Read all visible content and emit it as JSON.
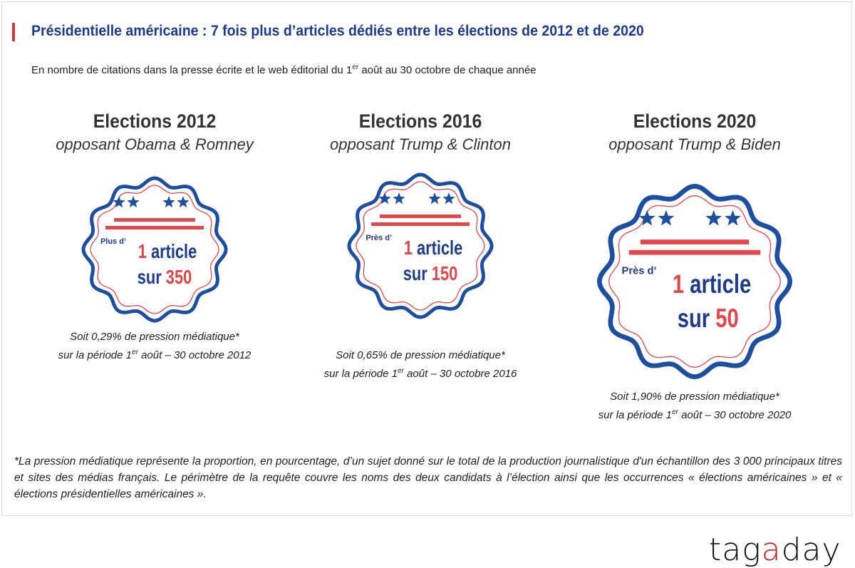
{
  "title": "Présidentielle américaine : 7 fois plus d’articles dédiés entre les élections de 2012 et de 2020",
  "subtitle_pre": "En nombre de citations dans la presse écrite et le web éditorial du 1",
  "subtitle_sup": "er",
  "subtitle_post": " août au 30 octobre de chaque année",
  "colors": {
    "blue": "#1d4ea0",
    "red": "#e2474b",
    "navy": "#1d3b8c"
  },
  "elections": [
    {
      "heading": "Elections 2012",
      "opponents": "opposant Obama & Romney",
      "prefix": "Plus d’",
      "one": "1",
      "article": "article",
      "sur": "sur",
      "number": "350",
      "stat1": "Soit 0,29% de pression médiatique*",
      "stat2_pre": "sur la période 1",
      "stat2_sup": "er",
      "stat2_post": " août – 30 octobre 2012"
    },
    {
      "heading": "Elections 2016",
      "opponents": "opposant Trump & Clinton",
      "prefix": "Près d’",
      "one": "1",
      "article": "article",
      "sur": "sur",
      "number": "150",
      "stat1": "Soit 0,65% de pression médiatique*",
      "stat2_pre": "sur la période 1",
      "stat2_sup": "er",
      "stat2_post": " août – 30 octobre 2016"
    },
    {
      "heading": "Elections 2020",
      "opponents": "opposant Trump & Biden",
      "prefix": "Près d’",
      "one": "1",
      "article": "article",
      "sur": "sur",
      "number": "50",
      "stat1": "Soit 1,90% de pression médiatique*",
      "stat2_pre": "sur la période 1",
      "stat2_sup": "er",
      "stat2_post": " août – 30 octobre 2020"
    }
  ],
  "footnote": "*La pression médiatique représente la proportion, en pourcentage, d’un sujet donné sur le total de la production journalistique d'un échantillon des 3 000 principaux titres et sites des médias français. Le périmètre de la requête couvre les noms des deux candidats à l’élection ainsi que les occurrences « élections américaines » et « élections présidentielles américaines ».",
  "logo": {
    "pre": "tag",
    "a": "a",
    "post": "day"
  }
}
